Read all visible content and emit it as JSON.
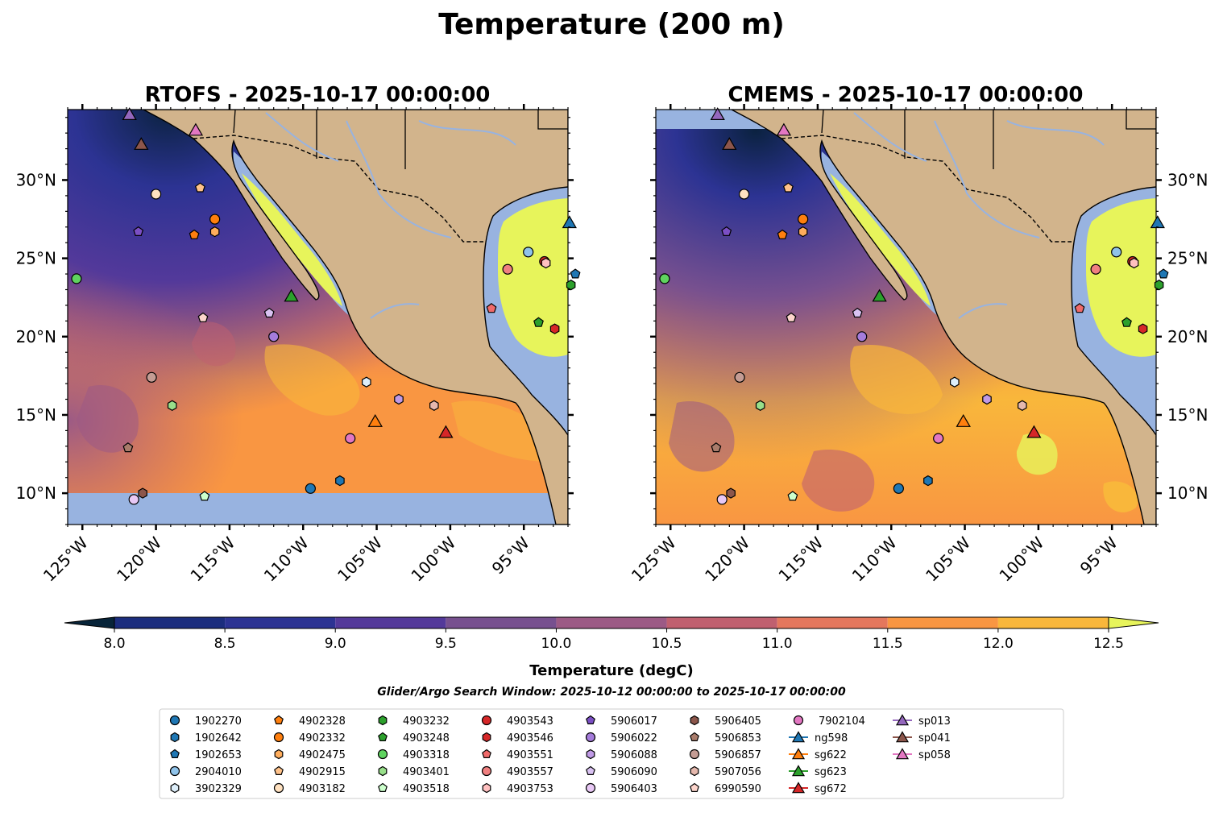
{
  "title": "Temperature (200 m)",
  "chart_data": {
    "type": "heatmap",
    "subtype": "map",
    "variable": "Temperature",
    "depth": "200 m",
    "panels": [
      {
        "title": "RTOFS - 2025-10-17 00:00:00",
        "model": "RTOFS",
        "no_data_south_of_lat": 10.2
      },
      {
        "title": "CMEMS - 2025-10-17 00:00:00",
        "model": "CMEMS",
        "no_data_north_of_lat": 33.3
      }
    ],
    "lon_range": [
      -126,
      -92
    ],
    "lat_range": [
      8,
      34.5
    ],
    "lon_ticks": [
      -125,
      -120,
      -115,
      -110,
      -105,
      -100,
      -95
    ],
    "lon_tick_labels": [
      "125°W",
      "120°W",
      "115°W",
      "110°W",
      "105°W",
      "100°W",
      "95°W"
    ],
    "lat_ticks": [
      10,
      15,
      20,
      25,
      30
    ],
    "lat_tick_labels": [
      "10°N",
      "15°N",
      "20°N",
      "25°N",
      "30°N"
    ],
    "colorbar": {
      "label": "Temperature (degC)",
      "min": 8.0,
      "max": 12.5,
      "ticks": [
        8.0,
        8.5,
        9.0,
        9.5,
        10.0,
        10.5,
        11.0,
        11.5,
        12.0,
        12.5
      ],
      "tick_labels": [
        "8.0",
        "8.5",
        "9.0",
        "9.5",
        "10.0",
        "10.5",
        "11.0",
        "11.5",
        "12.0",
        "12.5"
      ],
      "extend": "both",
      "colors": [
        "#072439",
        "#1b2d7e",
        "#2c3393",
        "#53399a",
        "#77508f",
        "#9c5a85",
        "#c0606f",
        "#e4775d",
        "#f99642",
        "#f9b73b",
        "#e7f45b"
      ]
    },
    "search_window": "Glider/Argo Search Window: 2025-10-12 00:00:00 to 2025-10-17 00:00:00",
    "observations": [
      {
        "id": "1902270",
        "lon": -109.5,
        "lat": 10.3,
        "marker": "circle",
        "color": "#1f77b4"
      },
      {
        "id": "1902642",
        "lon": -107.5,
        "lat": 10.8,
        "marker": "hexagon",
        "color": "#1f77b4"
      },
      {
        "id": "1902653",
        "lon": -91.5,
        "lat": 24.0,
        "marker": "pentagon",
        "color": "#1f77b4"
      },
      {
        "id": "2904010",
        "lon": -94.7,
        "lat": 25.4,
        "marker": "circle",
        "color": "#8fc3ea"
      },
      {
        "id": "3902329",
        "lon": -105.7,
        "lat": 17.1,
        "marker": "hexagon",
        "color": "#ddeefa"
      },
      {
        "id": "4902328",
        "lon": -117.4,
        "lat": 26.5,
        "marker": "pentagon",
        "color": "#ff7f0e"
      },
      {
        "id": "4902332",
        "lon": -116.0,
        "lat": 27.5,
        "marker": "circle",
        "color": "#ff7f0e"
      },
      {
        "id": "4902475",
        "lon": -116.0,
        "lat": 26.7,
        "marker": "hexagon",
        "color": "#ffad5c"
      },
      {
        "id": "4902915",
        "lon": -117.0,
        "lat": 29.5,
        "marker": "pentagon",
        "color": "#ffc28a"
      },
      {
        "id": "4903182",
        "lon": -120.0,
        "lat": 29.1,
        "marker": "circle",
        "color": "#ffe1c0"
      },
      {
        "id": "4903232",
        "lon": -91.8,
        "lat": 23.3,
        "marker": "hexagon",
        "color": "#2ca02c"
      },
      {
        "id": "4903248",
        "lon": -94.0,
        "lat": 20.9,
        "marker": "pentagon",
        "color": "#2ca02c"
      },
      {
        "id": "4903318",
        "lon": -125.4,
        "lat": 23.7,
        "marker": "circle",
        "color": "#5fd35f"
      },
      {
        "id": "4903401",
        "lon": -118.9,
        "lat": 15.6,
        "marker": "hexagon",
        "color": "#98df8a"
      },
      {
        "id": "4903518",
        "lon": -116.7,
        "lat": 9.8,
        "marker": "pentagon",
        "color": "#ccffcc"
      },
      {
        "id": "4903543",
        "lon": -93.6,
        "lat": 24.8,
        "marker": "circle",
        "color": "#d62728"
      },
      {
        "id": "4903546",
        "lon": -92.9,
        "lat": 20.5,
        "marker": "hexagon",
        "color": "#d62728"
      },
      {
        "id": "4903551",
        "lon": -97.2,
        "lat": 21.8,
        "marker": "pentagon",
        "color": "#f06a6a"
      },
      {
        "id": "4903557",
        "lon": -96.1,
        "lat": 24.3,
        "marker": "circle",
        "color": "#f08080"
      },
      {
        "id": "4903753",
        "lon": -93.5,
        "lat": 24.7,
        "marker": "hexagon",
        "color": "#ffc0c0"
      },
      {
        "id": "5906017",
        "lon": -121.2,
        "lat": 26.7,
        "marker": "pentagon",
        "color": "#7b4fc4"
      },
      {
        "id": "5906022",
        "lon": -112.0,
        "lat": 20.0,
        "marker": "circle",
        "color": "#a57cdb"
      },
      {
        "id": "5906088",
        "lon": -103.5,
        "lat": 16.0,
        "marker": "hexagon",
        "color": "#c09ae6"
      },
      {
        "id": "5906090",
        "lon": -112.3,
        "lat": 21.5,
        "marker": "pentagon",
        "color": "#d9c2f2"
      },
      {
        "id": "5906403",
        "lon": -121.5,
        "lat": 9.6,
        "marker": "circle",
        "color": "#e8c8f5"
      },
      {
        "id": "5906405",
        "lon": -120.9,
        "lat": 10.0,
        "marker": "hexagon",
        "color": "#8c564b"
      },
      {
        "id": "5906853",
        "lon": -121.9,
        "lat": 12.9,
        "marker": "pentagon",
        "color": "#a97c6b"
      },
      {
        "id": "5906857",
        "lon": -120.3,
        "lat": 17.4,
        "marker": "circle",
        "color": "#c49c94"
      },
      {
        "id": "5907056",
        "lon": -101.1,
        "lat": 15.6,
        "marker": "hexagon",
        "color": "#e5b8ad"
      },
      {
        "id": "6990590",
        "lon": -116.8,
        "lat": 21.2,
        "marker": "pentagon",
        "color": "#fdd5cc"
      },
      {
        "id": "7902104",
        "lon": -106.8,
        "lat": 13.5,
        "marker": "circle",
        "color": "#e377c2"
      },
      {
        "id": "ng598",
        "lon": -91.9,
        "lat": 27.3,
        "marker": "triangle",
        "color": "#1f77b4"
      },
      {
        "id": "sg622",
        "lon": -105.1,
        "lat": 14.6,
        "marker": "triangle",
        "color": "#ff7f0e"
      },
      {
        "id": "sg623",
        "lon": -110.8,
        "lat": 22.6,
        "marker": "triangle",
        "color": "#2ca02c"
      },
      {
        "id": "sg672",
        "lon": -100.3,
        "lat": 13.9,
        "marker": "triangle",
        "color": "#d62728"
      },
      {
        "id": "sp013",
        "lon": -121.8,
        "lat": 34.2,
        "marker": "triangle",
        "color": "#9467bd"
      },
      {
        "id": "sp041",
        "lon": -121.0,
        "lat": 32.3,
        "marker": "triangle",
        "color": "#8c564b"
      },
      {
        "id": "sp058",
        "lon": -117.3,
        "lat": 33.2,
        "marker": "triangle",
        "color": "#e377c2"
      }
    ]
  }
}
